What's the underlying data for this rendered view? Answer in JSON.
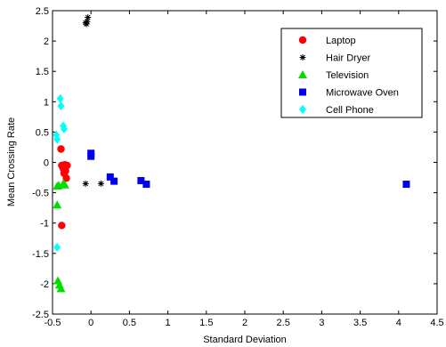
{
  "chart_data": {
    "type": "scatter",
    "title": "",
    "xlabel": "Standard Deviation",
    "ylabel": "Mean Crossing Rate",
    "xlim": [
      -0.5,
      4.5
    ],
    "ylim": [
      -2.5,
      2.5
    ],
    "xticks": [
      "-0.5",
      "0",
      "0.5",
      "1",
      "1.5",
      "2",
      "2.5",
      "3",
      "3.5",
      "4",
      "4.5"
    ],
    "yticks": [
      "-2.5",
      "-2",
      "-1.5",
      "-1",
      "-0.5",
      "0",
      "0.5",
      "1",
      "1.5",
      "2",
      "2.5"
    ],
    "grid": false,
    "legend_position": "top-right",
    "series": [
      {
        "name": "Laptop",
        "marker": "circle",
        "color": "#ff0000",
        "points": [
          [
            -0.39,
            0.22
          ],
          [
            -0.38,
            -0.05
          ],
          [
            -0.36,
            -0.1
          ],
          [
            -0.35,
            -0.18
          ],
          [
            -0.34,
            -0.04
          ],
          [
            -0.33,
            -0.14
          ],
          [
            -0.32,
            -0.26
          ],
          [
            -0.31,
            -0.05
          ],
          [
            -0.38,
            -1.04
          ]
        ]
      },
      {
        "name": "Hair Dryer",
        "marker": "star",
        "color": "#000000",
        "points": [
          [
            -0.07,
            2.3
          ],
          [
            -0.06,
            2.28
          ],
          [
            -0.05,
            2.32
          ],
          [
            -0.04,
            2.39
          ],
          [
            -0.07,
            -0.35
          ],
          [
            0.13,
            -0.35
          ]
        ]
      },
      {
        "name": "Television",
        "marker": "triangle",
        "color": "#00dd00",
        "points": [
          [
            -0.44,
            -0.39
          ],
          [
            -0.42,
            -0.38
          ],
          [
            -0.36,
            -0.35
          ],
          [
            -0.34,
            -0.37
          ],
          [
            -0.44,
            -0.7
          ],
          [
            -0.43,
            -1.95
          ],
          [
            -0.41,
            -2.02
          ],
          [
            -0.39,
            -2.08
          ]
        ]
      },
      {
        "name": "Microwave Oven",
        "marker": "square",
        "color": "#0000ee",
        "points": [
          [
            0.0,
            0.1
          ],
          [
            0.0,
            0.15
          ],
          [
            0.25,
            -0.24
          ],
          [
            0.3,
            -0.31
          ],
          [
            0.65,
            -0.3
          ],
          [
            0.72,
            -0.36
          ],
          [
            4.1,
            -0.36
          ]
        ]
      },
      {
        "name": "Cell Phone",
        "marker": "diamond",
        "color": "#00ffff",
        "points": [
          [
            -0.45,
            0.45
          ],
          [
            -0.44,
            0.38
          ],
          [
            -0.4,
            1.05
          ],
          [
            -0.39,
            0.93
          ],
          [
            -0.36,
            0.6
          ],
          [
            -0.35,
            0.55
          ],
          [
            -0.44,
            -1.4
          ]
        ]
      }
    ]
  }
}
